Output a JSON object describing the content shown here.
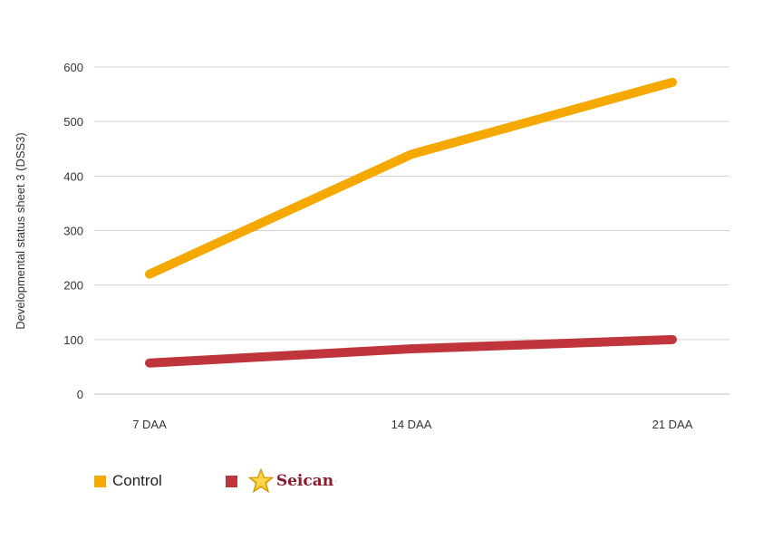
{
  "chart_data": {
    "type": "line",
    "title": "",
    "xlabel": "",
    "ylabel": "Developmental status sheet 3 (DSS3)",
    "categories": [
      "7 DAA",
      "14 DAA",
      "21 DAA"
    ],
    "ylim": [
      0,
      600
    ],
    "yticks": [
      "0",
      "100",
      "200",
      "300",
      "400",
      "500",
      "600"
    ],
    "grid": true,
    "legend_position": "bottom-left",
    "series": [
      {
        "name": "Control",
        "color": "#f5a800",
        "values": [
          220,
          440,
          572
        ]
      },
      {
        "name": "Seican",
        "color": "#c0343b",
        "values": [
          57,
          83,
          100
        ]
      }
    ]
  },
  "legend": {
    "control_label": "Control",
    "brand_name": "Seican",
    "brand_mark": "·",
    "brand_icon": "star-icon"
  }
}
